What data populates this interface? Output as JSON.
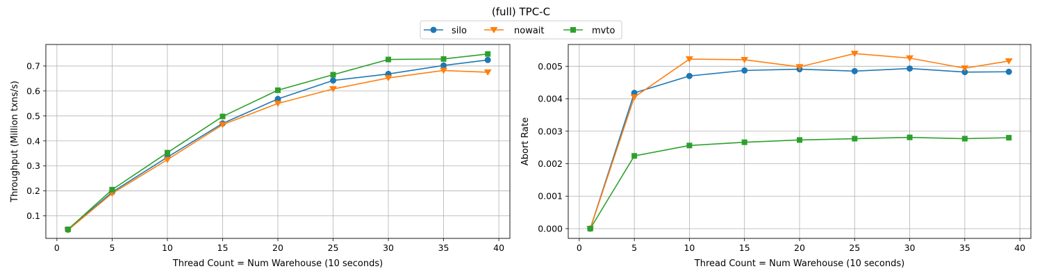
{
  "figure": {
    "title": "(full) TPC-C"
  },
  "legend": {
    "placement": "top-center",
    "entries": [
      {
        "name": "silo",
        "color": "#1f77b4",
        "marker": "circle"
      },
      {
        "name": "nowait",
        "color": "#ff7f0e",
        "marker": "triangle-down"
      },
      {
        "name": "mvto",
        "color": "#2ca02c",
        "marker": "square"
      }
    ]
  },
  "chart_data": [
    {
      "type": "line",
      "title": "",
      "xlabel": "Thread Count = Num Warehouse (10 seconds)",
      "ylabel": "Throughput (Million txns/s)",
      "x": [
        1,
        5,
        10,
        15,
        20,
        25,
        30,
        35,
        39
      ],
      "xlim": [
        -1,
        41
      ],
      "ylim": [
        0.01,
        0.786
      ],
      "xticks": [
        0,
        5,
        10,
        15,
        20,
        25,
        30,
        35,
        40
      ],
      "xtick_labels": [
        "0",
        "5",
        "10",
        "15",
        "20",
        "25",
        "30",
        "35",
        "40"
      ],
      "yticks": [
        0.1,
        0.2,
        0.3,
        0.4,
        0.5,
        0.6,
        0.7
      ],
      "ytick_labels": [
        "0.1",
        "0.2",
        "0.3",
        "0.4",
        "0.5",
        "0.6",
        "0.7"
      ],
      "grid": true,
      "series": [
        {
          "name": "silo",
          "color": "#1f77b4",
          "marker": "circle",
          "values": [
            0.045,
            0.195,
            0.335,
            0.47,
            0.568,
            0.642,
            0.668,
            0.702,
            0.724
          ]
        },
        {
          "name": "nowait",
          "color": "#ff7f0e",
          "marker": "triangle-down",
          "values": [
            0.043,
            0.19,
            0.325,
            0.465,
            0.55,
            0.608,
            0.652,
            0.682,
            0.675
          ]
        },
        {
          "name": "mvto",
          "color": "#2ca02c",
          "marker": "square",
          "values": [
            0.046,
            0.205,
            0.353,
            0.498,
            0.603,
            0.665,
            0.726,
            0.728,
            0.748
          ]
        }
      ]
    },
    {
      "type": "line",
      "title": "",
      "xlabel": "Thread Count = Num Warehouse (10 seconds)",
      "ylabel": "Abort Rate",
      "x": [
        1,
        5,
        10,
        15,
        20,
        25,
        30,
        35,
        39
      ],
      "xlim": [
        -1,
        41
      ],
      "ylim": [
        -0.0003,
        0.00567
      ],
      "xticks": [
        0,
        5,
        10,
        15,
        20,
        25,
        30,
        35,
        40
      ],
      "xtick_labels": [
        "0",
        "5",
        "10",
        "15",
        "20",
        "25",
        "30",
        "35",
        "40"
      ],
      "yticks": [
        0,
        0.001,
        0.002,
        0.003,
        0.004,
        0.005
      ],
      "ytick_labels": [
        "0.000",
        "0.001",
        "0.002",
        "0.003",
        "0.004",
        "0.005"
      ],
      "grid": true,
      "series": [
        {
          "name": "silo",
          "color": "#1f77b4",
          "marker": "circle",
          "values": [
            0.0,
            0.00418,
            0.0047,
            0.00487,
            0.00491,
            0.00485,
            0.00493,
            0.00482,
            0.00483
          ]
        },
        {
          "name": "nowait",
          "color": "#ff7f0e",
          "marker": "triangle-down",
          "values": [
            0.0,
            0.00405,
            0.00522,
            0.0052,
            0.00498,
            0.00539,
            0.00525,
            0.00494,
            0.00516
          ]
        },
        {
          "name": "mvto",
          "color": "#2ca02c",
          "marker": "square",
          "values": [
            0.0,
            0.00224,
            0.00256,
            0.00266,
            0.00273,
            0.00277,
            0.00281,
            0.00277,
            0.0028
          ]
        }
      ]
    }
  ]
}
